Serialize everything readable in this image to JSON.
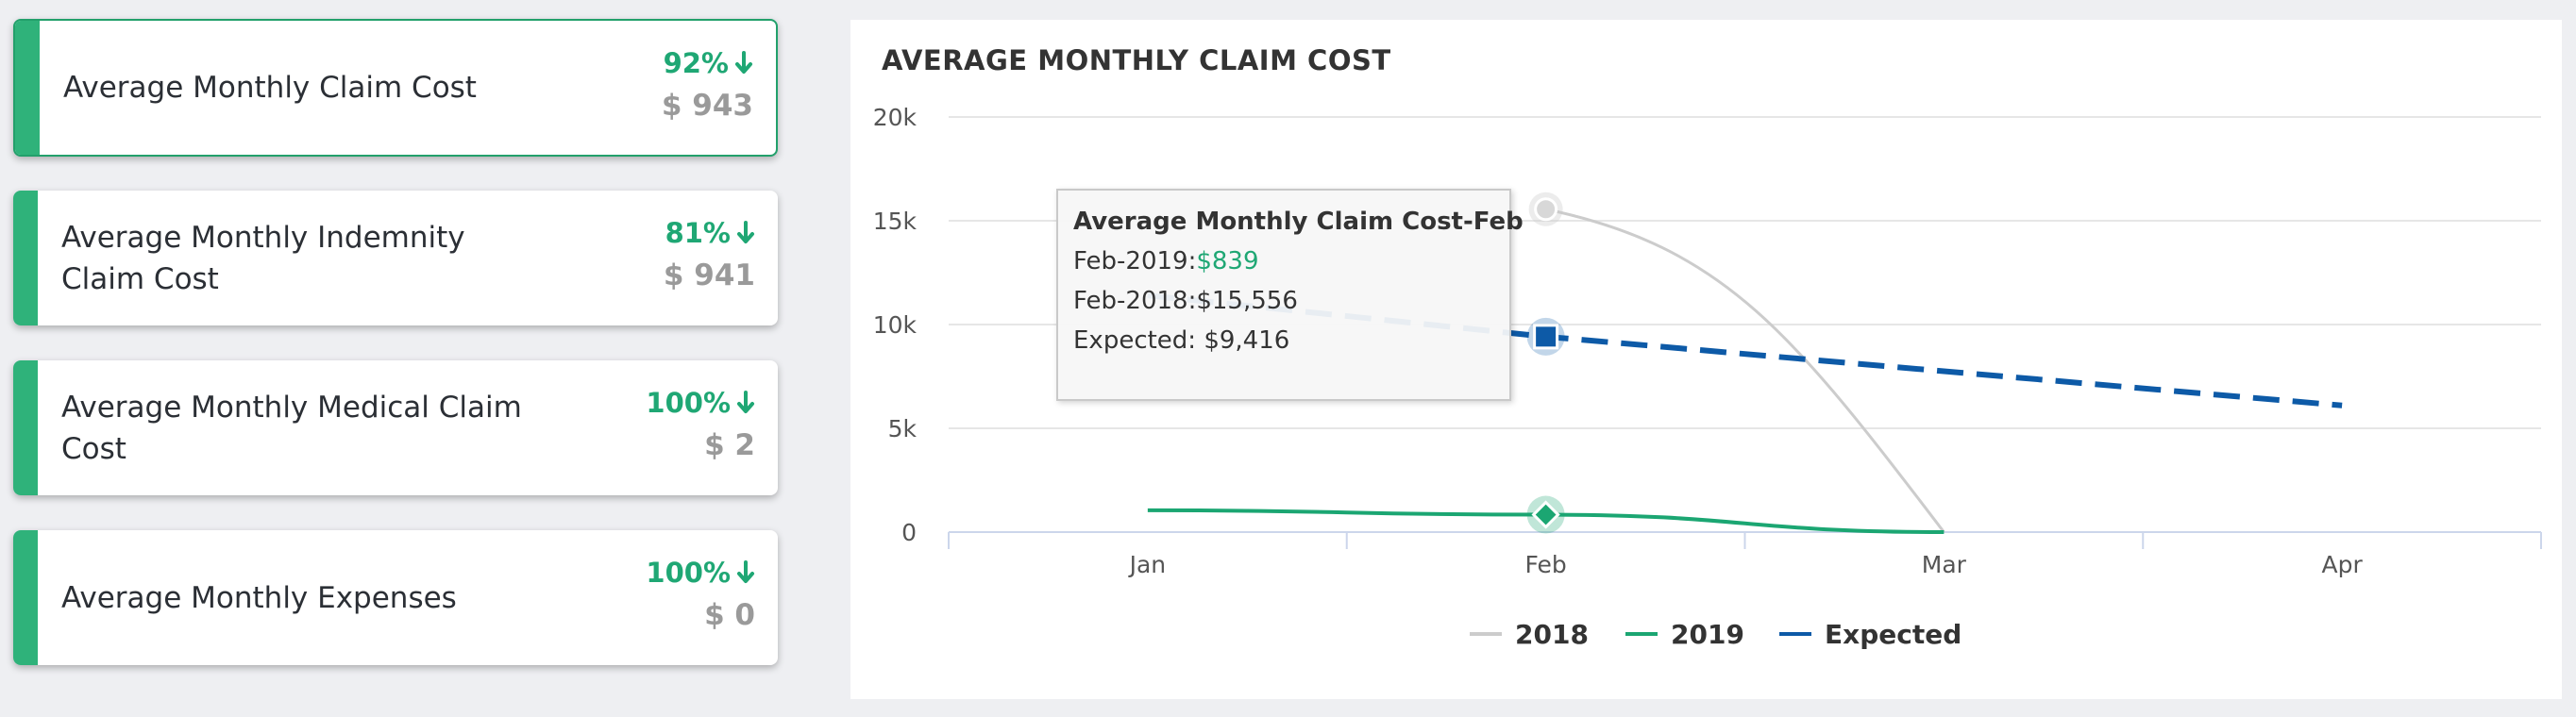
{
  "cards": [
    {
      "title": "Average Monthly Claim Cost",
      "percent": "92%",
      "amount": "$ 943",
      "selected": true
    },
    {
      "title": "Average Monthly Indemnity Claim Cost",
      "percent": "81%",
      "amount": "$ 941",
      "selected": false
    },
    {
      "title": "Average Monthly Medical Claim Cost",
      "percent": "100%",
      "amount": "$ 2",
      "selected": false
    },
    {
      "title": "Average Monthly Expenses",
      "percent": "100%",
      "amount": "$ 0",
      "selected": false
    }
  ],
  "card_icon": "arrow-down-icon",
  "colors": {
    "accent": "#2fb27a",
    "percent": "#1fa774",
    "amount": "#9a9a9a",
    "series_2018": "#cccccc",
    "series_2019": "#1ba672",
    "series_expected": "#0d5aa7"
  },
  "chart_data": {
    "type": "line",
    "title": "AVERAGE MONTHLY CLAIM COST",
    "categories": [
      "Jan",
      "Feb",
      "Mar",
      "Apr"
    ],
    "yticks": [
      "0",
      "5k",
      "10k",
      "15k",
      "20k"
    ],
    "ylim": [
      0,
      20000
    ],
    "grid": true,
    "legend_position": "bottom",
    "series": [
      {
        "name": "2018",
        "values": [
          null,
          15556,
          0,
          null
        ],
        "color": "#cccccc",
        "style": "solid"
      },
      {
        "name": "2019",
        "values": [
          1050,
          839,
          0,
          null
        ],
        "color": "#1ba672",
        "style": "solid"
      },
      {
        "name": "Expected",
        "values": [
          11400,
          9416,
          7750,
          6100
        ],
        "color": "#0d5aa7",
        "style": "dashed"
      }
    ],
    "tooltip": {
      "header": "Average Monthly Claim Cost-Feb",
      "rows": [
        {
          "label": "Feb-2019:",
          "value": "$839"
        },
        {
          "label": "Feb-2018:",
          "value": "$15,556"
        },
        {
          "label": "Expected: ",
          "value": "$9,416"
        }
      ]
    }
  }
}
